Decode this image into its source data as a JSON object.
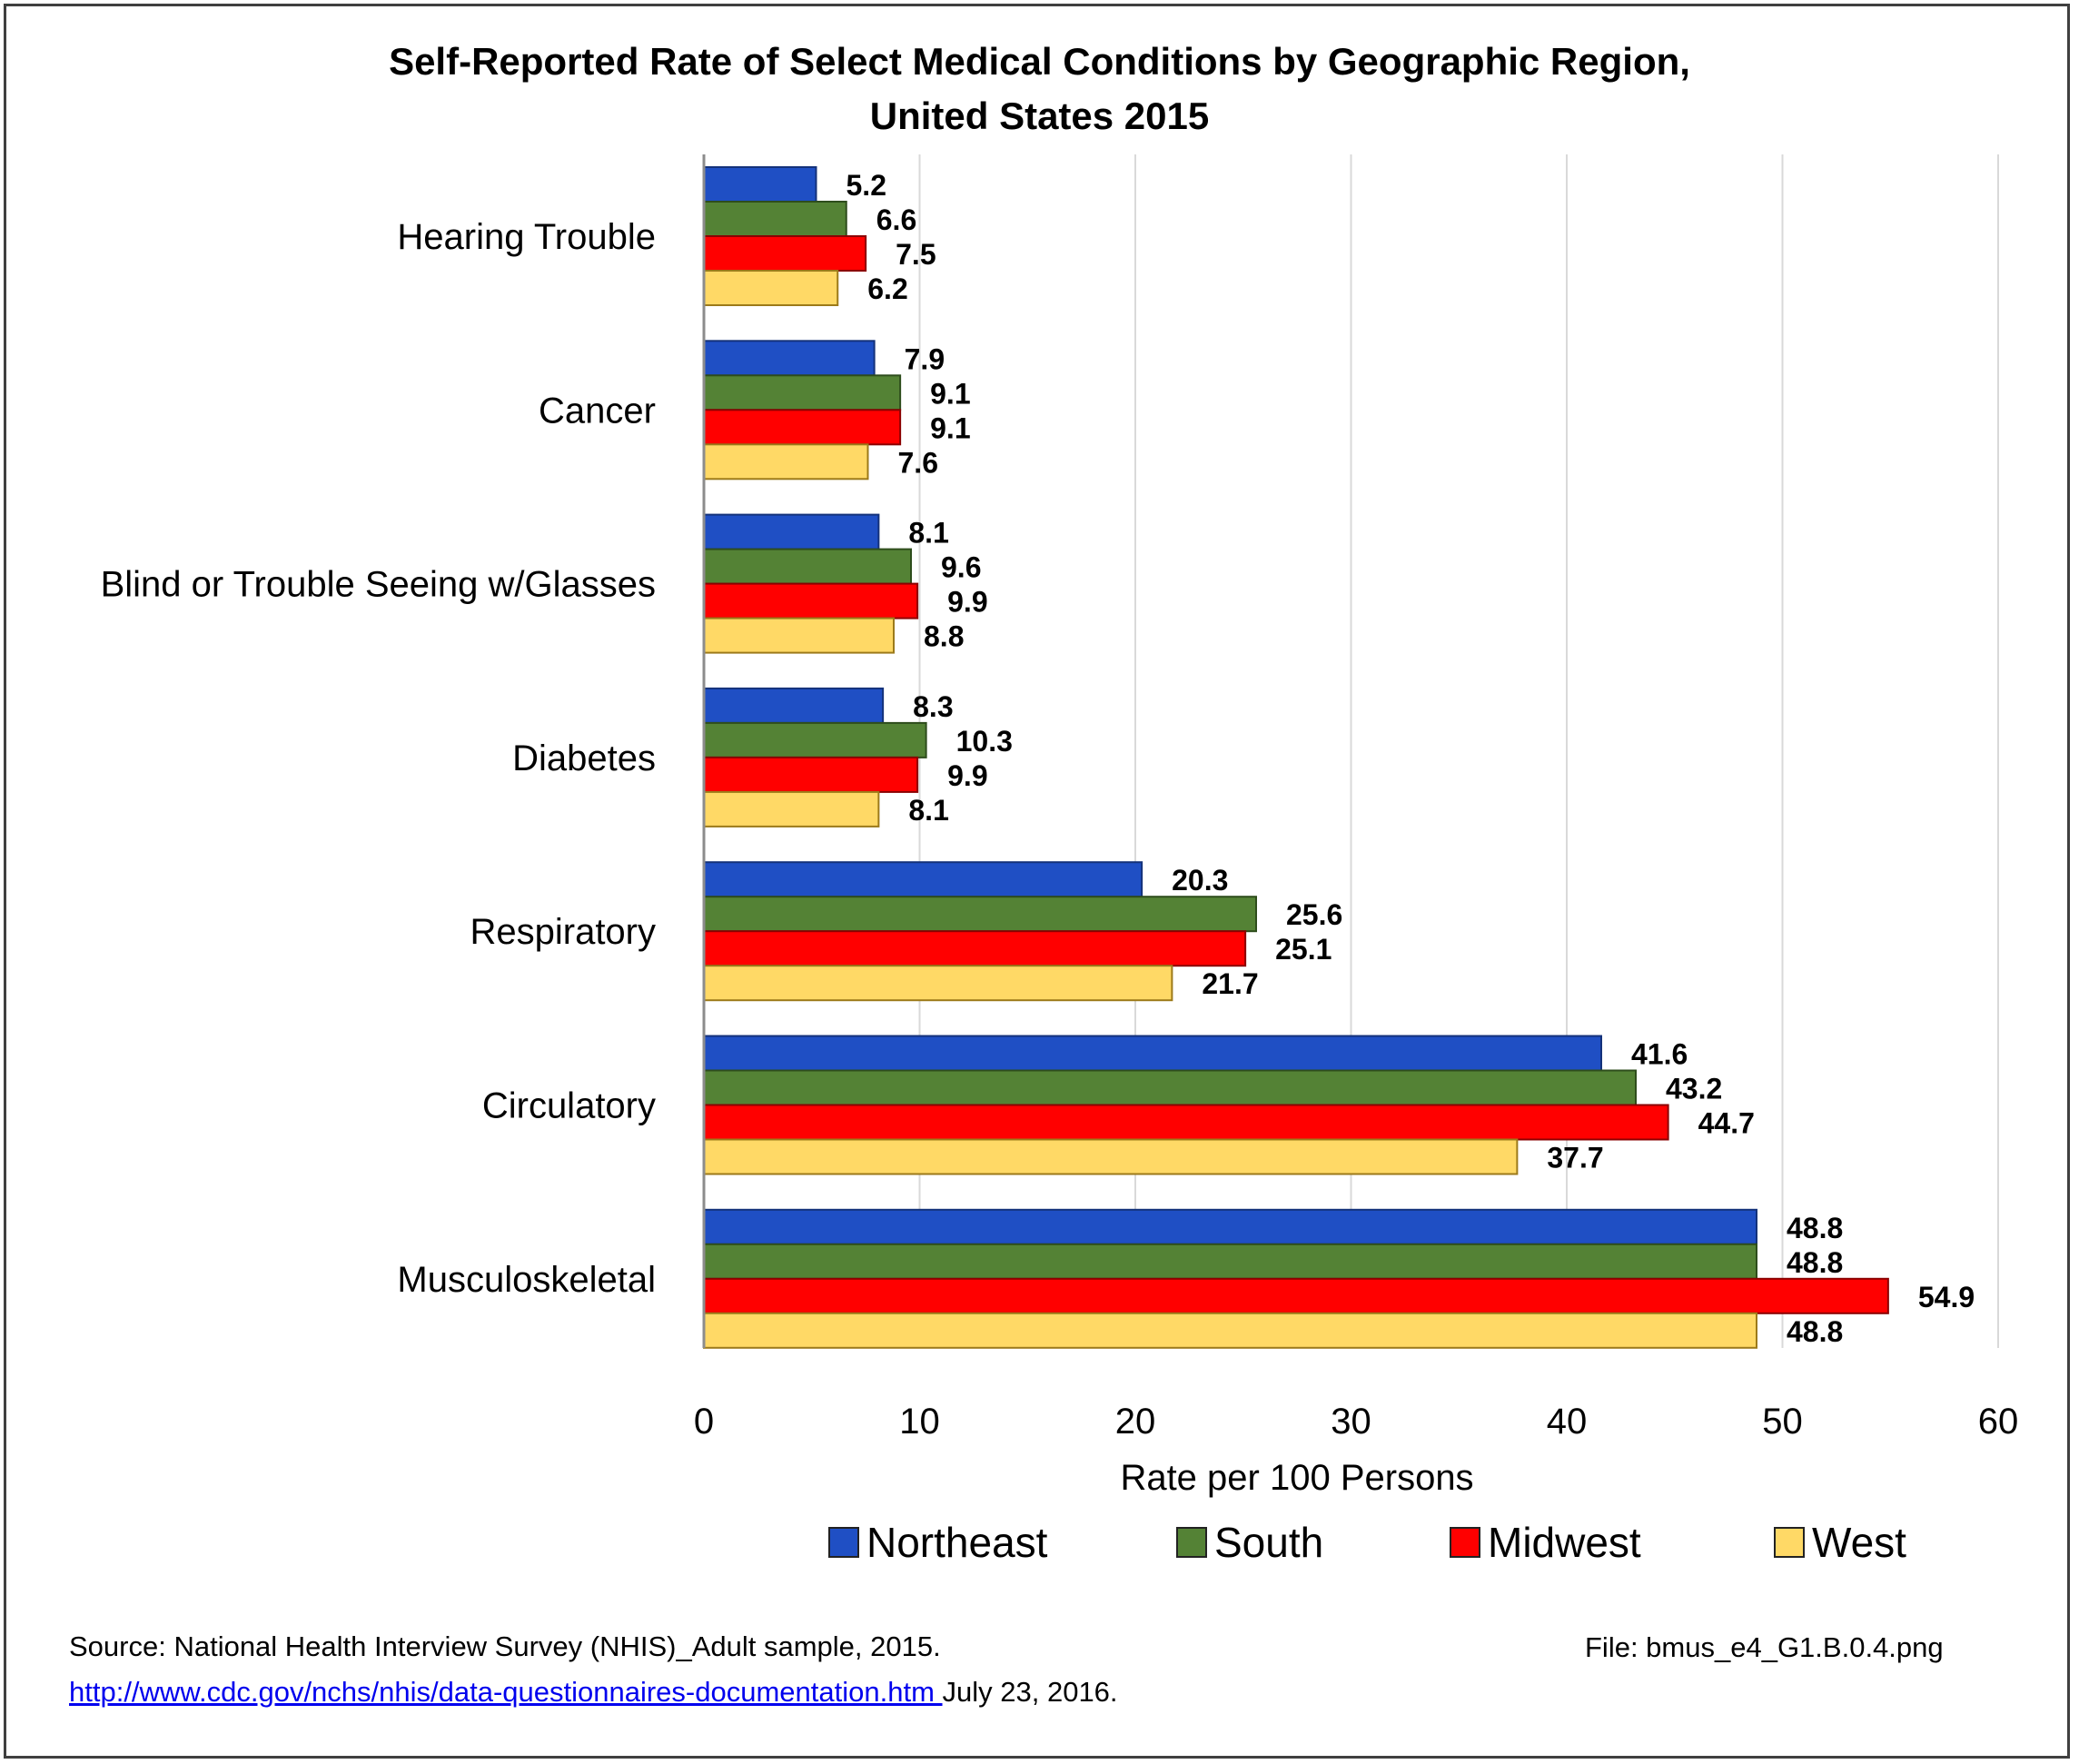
{
  "chart_data": {
    "type": "bar",
    "orientation": "horizontal",
    "title": [
      "Self-Reported Rate of Select Medical Conditions by Geographic Region,",
      "United States 2015"
    ],
    "xlabel": "Rate per 100 Persons",
    "xlim": [
      0,
      60
    ],
    "xticks": [
      0,
      10,
      20,
      30,
      40,
      50,
      60
    ],
    "grid": true,
    "legend": "bottom",
    "categories": [
      "Hearing Trouble",
      "Cancer",
      "Blind or Trouble Seeing w/Glasses",
      "Diabetes",
      "Respiratory",
      "Circulatory",
      "Musculoskeletal"
    ],
    "series": [
      {
        "name": "Northeast",
        "color": "#1f4fc4",
        "values": [
          5.2,
          7.9,
          8.1,
          8.3,
          20.3,
          41.6,
          48.8
        ]
      },
      {
        "name": "South",
        "color": "#548235",
        "values": [
          6.6,
          9.1,
          9.6,
          10.3,
          25.6,
          43.2,
          48.8
        ]
      },
      {
        "name": "Midwest",
        "color": "#ff0000",
        "values": [
          7.5,
          9.1,
          9.9,
          9.9,
          25.1,
          44.7,
          54.9
        ]
      },
      {
        "name": "West",
        "color": "#ffd966",
        "values": [
          6.2,
          7.6,
          8.8,
          8.1,
          21.7,
          37.7,
          48.8
        ]
      }
    ]
  },
  "source": {
    "text": "Source: National Health Interview Survey (NHIS)_Adult sample, 2015.",
    "url": "http://www.cdc.gov/nchs/nhis/data-questionnaires-documentation.htm ",
    "date": " July 23, 2016."
  },
  "file_label": "File: bmus_e4_G1.B.0.4.png"
}
